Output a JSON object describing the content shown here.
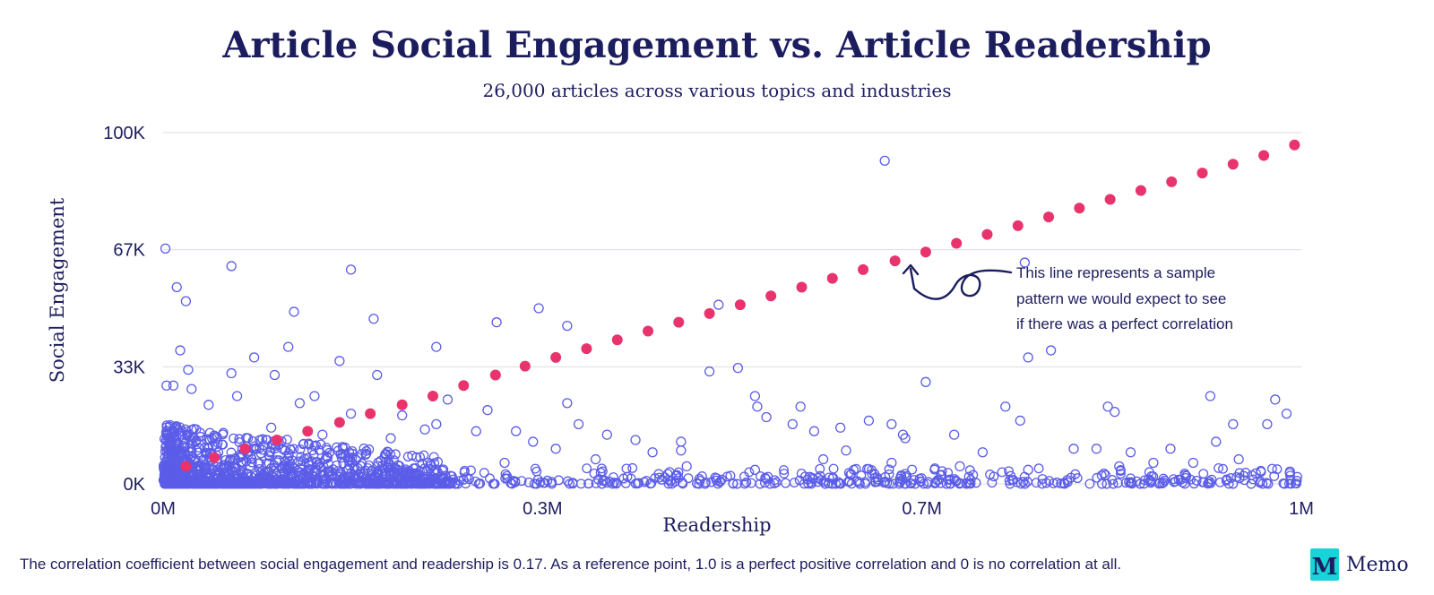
{
  "chart_data": {
    "type": "scatter",
    "title": "Article Social Engagement vs. Article Readership",
    "subtitle": "26,000 articles across various topics and industries",
    "xlabel": "Readership",
    "ylabel": "Social Engagement",
    "xlim": [
      0,
      1000000
    ],
    "ylim": [
      0,
      100000
    ],
    "x_ticks": [
      {
        "value": 0,
        "label": "0M"
      },
      {
        "value": 333333,
        "label": "0.3M"
      },
      {
        "value": 666667,
        "label": "0.7M"
      },
      {
        "value": 1000000,
        "label": "1M"
      }
    ],
    "y_ticks": [
      {
        "value": 0,
        "label": "0K"
      },
      {
        "value": 33333,
        "label": "33K"
      },
      {
        "value": 66667,
        "label": "67K"
      },
      {
        "value": 100000,
        "label": "100K"
      }
    ],
    "grid": true,
    "colors": {
      "articles": "#5b5de8",
      "reference": "#e8336d",
      "text": "#1c1d5e"
    },
    "series": [
      {
        "marker": "open-circle",
        "points": [
          [
            2000,
            67000
          ],
          [
            12000,
            56000
          ],
          [
            20000,
            52000
          ],
          [
            60000,
            62000
          ],
          [
            115000,
            49000
          ],
          [
            165000,
            61000
          ],
          [
            185000,
            47000
          ],
          [
            330000,
            50000
          ],
          [
            355000,
            45000
          ],
          [
            293000,
            46000
          ],
          [
            15000,
            38000
          ],
          [
            110000,
            39000
          ],
          [
            240000,
            39000
          ],
          [
            80000,
            36000
          ],
          [
            155000,
            35000
          ],
          [
            188000,
            31000
          ],
          [
            98000,
            31000
          ],
          [
            60000,
            31500
          ],
          [
            22000,
            32500
          ],
          [
            3000,
            28000
          ],
          [
            9000,
            28000
          ],
          [
            25000,
            27000
          ],
          [
            65000,
            25000
          ],
          [
            133000,
            25000
          ],
          [
            250000,
            24000
          ],
          [
            285000,
            21000
          ],
          [
            355000,
            23000
          ],
          [
            40000,
            22500
          ],
          [
            120000,
            23000
          ],
          [
            165000,
            20000
          ],
          [
            210000,
            19500
          ],
          [
            240000,
            17000
          ],
          [
            275000,
            15000
          ],
          [
            310000,
            15000
          ],
          [
            365000,
            17000
          ],
          [
            390000,
            14000
          ],
          [
            415000,
            12500
          ],
          [
            455000,
            12000
          ],
          [
            488000,
            51000
          ],
          [
            480000,
            32000
          ],
          [
            505000,
            33000
          ],
          [
            520000,
            25000
          ],
          [
            522000,
            22000
          ],
          [
            530000,
            19000
          ],
          [
            553000,
            17000
          ],
          [
            560000,
            22000
          ],
          [
            572000,
            15000
          ],
          [
            595000,
            16000
          ],
          [
            620000,
            18000
          ],
          [
            634000,
            92000
          ],
          [
            640000,
            17000
          ],
          [
            650000,
            14000
          ],
          [
            652000,
            13000
          ],
          [
            670000,
            29000
          ],
          [
            695000,
            14000
          ],
          [
            720000,
            9000
          ],
          [
            740000,
            22000
          ],
          [
            753000,
            18000
          ],
          [
            757000,
            63000
          ],
          [
            760000,
            36000
          ],
          [
            780000,
            38000
          ],
          [
            800000,
            10000
          ],
          [
            820000,
            10000
          ],
          [
            830000,
            22000
          ],
          [
            836000,
            20500
          ],
          [
            850000,
            9000
          ],
          [
            870000,
            6000
          ],
          [
            885000,
            10000
          ],
          [
            920000,
            25000
          ],
          [
            925000,
            12000
          ],
          [
            940000,
            17000
          ],
          [
            970000,
            17000
          ],
          [
            977000,
            24000
          ],
          [
            987000,
            20000
          ],
          [
            95000,
            16000
          ],
          [
            140000,
            14000
          ],
          [
            200000,
            13000
          ],
          [
            230000,
            15500
          ],
          [
            325000,
            12000
          ],
          [
            345000,
            10000
          ],
          [
            430000,
            9000
          ],
          [
            455000,
            9500
          ],
          [
            300000,
            6000
          ],
          [
            380000,
            7000
          ],
          [
            460000,
            5000
          ],
          [
            520000,
            4000
          ],
          [
            580000,
            7000
          ],
          [
            600000,
            9500
          ],
          [
            640000,
            6000
          ],
          [
            700000,
            5000
          ],
          [
            760000,
            4000
          ],
          [
            840000,
            5000
          ],
          [
            905000,
            6000
          ],
          [
            945000,
            7000
          ],
          [
            960000,
            3000
          ],
          [
            990000,
            3500
          ]
        ],
        "dense_cluster": {
          "x_range": [
            0,
            250000
          ],
          "y_range": [
            0,
            17000
          ],
          "peak_x": 20000,
          "note": "thousands of overlapping points near origin"
        }
      },
      {
        "marker": "filled-circle",
        "points": [
          [
            20000,
            5000
          ],
          [
            45000,
            7500
          ],
          [
            72000,
            10000
          ],
          [
            100000,
            12500
          ],
          [
            127000,
            15000
          ],
          [
            155000,
            17500
          ],
          [
            182000,
            20000
          ],
          [
            210000,
            22500
          ],
          [
            237000,
            25000
          ],
          [
            264000,
            28000
          ],
          [
            292000,
            31000
          ],
          [
            318000,
            33500
          ],
          [
            345000,
            36000
          ],
          [
            372000,
            38500
          ],
          [
            399000,
            41000
          ],
          [
            426000,
            43500
          ],
          [
            453000,
            46000
          ],
          [
            480000,
            48500
          ],
          [
            507000,
            51000
          ],
          [
            534000,
            53500
          ],
          [
            561000,
            56000
          ],
          [
            588000,
            58500
          ],
          [
            615000,
            61000
          ],
          [
            643000,
            63500
          ],
          [
            670000,
            66000
          ],
          [
            697000,
            68500
          ],
          [
            724000,
            71000
          ],
          [
            751000,
            73500
          ],
          [
            778000,
            76000
          ],
          [
            805000,
            78500
          ],
          [
            832000,
            81000
          ],
          [
            859000,
            83500
          ],
          [
            886000,
            86000
          ],
          [
            913000,
            88500
          ],
          [
            940000,
            91000
          ],
          [
            967000,
            93500
          ],
          [
            994000,
            96500
          ]
        ]
      }
    ],
    "annotation": {
      "lines": [
        "This line represents a sample",
        "pattern we would expect to see",
        "if there was a perfect correlation"
      ],
      "arrow_icon": "curved-loop-arrow-icon"
    }
  },
  "footnote": "The correlation coefficient between social engagement and readership is 0.17. As a reference point, 1.0 is a perfect positive correlation and 0 is no correlation at all.",
  "logo": {
    "mark": "M",
    "text": "Memo",
    "color": "#16d4d8"
  }
}
